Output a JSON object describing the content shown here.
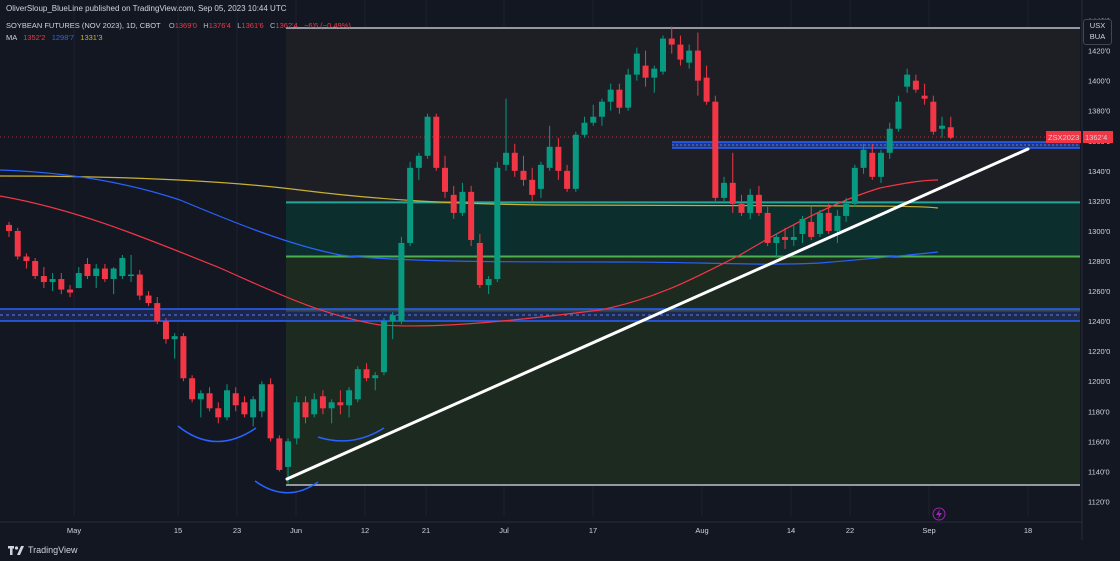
{
  "header": {
    "attribution": "OliverSloup_BlueLine published on TradingView.com, Sep 05, 2023 10:44 UTC"
  },
  "symbol": {
    "title": "SOYBEAN FUTURES (NOV 2023), 1D, CBOT",
    "o_label": "O",
    "o_value": "1369'0",
    "h_label": "H",
    "h_value": "1376'4",
    "l_label": "L",
    "l_value": "1361'6",
    "c_label": "C",
    "c_value": "1362'4",
    "change": "−6'6 (−0.49%)"
  },
  "ma": {
    "label": "MA",
    "v1": "1352'2",
    "v2": "1298'7",
    "v3": "1331'3",
    "colors": {
      "v1": "#f23645",
      "v2": "#2962ff",
      "v3": "#c9b033"
    }
  },
  "currency": {
    "line1": "USX",
    "line2": "BUA"
  },
  "price_tag": {
    "symbol": "ZSX2023",
    "price": "1362'4"
  },
  "footer": {
    "brand": "TradingView"
  },
  "colors": {
    "background": "#131722",
    "up": "#089981",
    "down": "#f23645",
    "white_trend": "#ffffff",
    "blue_zone": "#2962ff",
    "green_line": "#4caf50",
    "teal_line": "#26a69a",
    "grey_line": "#9598a1"
  },
  "chart_data": {
    "type": "candlestick",
    "y_ticks": [
      "1440'0",
      "1420'0",
      "1400'0",
      "1380'0",
      "1360'0",
      "1340'0",
      "1320'0",
      "1300'0",
      "1280'0",
      "1260'0",
      "1240'0",
      "1220'0",
      "1200'0",
      "1180'0",
      "1160'0",
      "1140'0",
      "1120'0"
    ],
    "x_ticks": [
      "May",
      "15",
      "23",
      "Jun",
      "12",
      "21",
      "Jul",
      "17",
      "Aug",
      "14",
      "22",
      "Sep",
      "18"
    ],
    "ylim": [
      1113,
      1451
    ],
    "levels": [
      {
        "name": "top-range",
        "value": 1435,
        "color": "#9598a1"
      },
      {
        "name": "bottom-range",
        "value": 1131,
        "color": "#9598a1"
      },
      {
        "name": "teal-support",
        "value": 1319,
        "color": "#26a69a"
      },
      {
        "name": "green-support",
        "value": 1283,
        "color": "#4caf50"
      },
      {
        "name": "light-green",
        "value": 1247,
        "color": "#8bc34a"
      }
    ],
    "candles": [
      {
        "o": 1304,
        "h": 1306,
        "l": 1296,
        "c": 1300
      },
      {
        "o": 1300,
        "h": 1302,
        "l": 1281,
        "c": 1283
      },
      {
        "o": 1283,
        "h": 1285,
        "l": 1275,
        "c": 1280
      },
      {
        "o": 1280,
        "h": 1282,
        "l": 1268,
        "c": 1270
      },
      {
        "o": 1270,
        "h": 1276,
        "l": 1262,
        "c": 1266
      },
      {
        "o": 1266,
        "h": 1272,
        "l": 1260,
        "c": 1268
      },
      {
        "o": 1268,
        "h": 1272,
        "l": 1258,
        "c": 1261
      },
      {
        "o": 1261,
        "h": 1264,
        "l": 1256,
        "c": 1259
      },
      {
        "o": 1262,
        "h": 1276,
        "l": 1262,
        "c": 1272
      },
      {
        "o": 1278,
        "h": 1282,
        "l": 1268,
        "c": 1270
      },
      {
        "o": 1270,
        "h": 1278,
        "l": 1262,
        "c": 1275
      },
      {
        "o": 1275,
        "h": 1278,
        "l": 1266,
        "c": 1268
      },
      {
        "o": 1268,
        "h": 1276,
        "l": 1258,
        "c": 1275
      },
      {
        "o": 1270,
        "h": 1284,
        "l": 1268,
        "c": 1282
      },
      {
        "o": 1270,
        "h": 1284,
        "l": 1266,
        "c": 1271
      },
      {
        "o": 1271,
        "h": 1274,
        "l": 1254,
        "c": 1257
      },
      {
        "o": 1257,
        "h": 1260,
        "l": 1250,
        "c": 1252
      },
      {
        "o": 1252,
        "h": 1256,
        "l": 1238,
        "c": 1240
      },
      {
        "o": 1240,
        "h": 1242,
        "l": 1225,
        "c": 1228
      },
      {
        "o": 1228,
        "h": 1232,
        "l": 1215,
        "c": 1230
      },
      {
        "o": 1230,
        "h": 1232,
        "l": 1200,
        "c": 1202
      },
      {
        "o": 1202,
        "h": 1204,
        "l": 1186,
        "c": 1188
      },
      {
        "o": 1188,
        "h": 1194,
        "l": 1176,
        "c": 1192
      },
      {
        "o": 1192,
        "h": 1196,
        "l": 1180,
        "c": 1182
      },
      {
        "o": 1182,
        "h": 1186,
        "l": 1172,
        "c": 1176
      },
      {
        "o": 1176,
        "h": 1198,
        "l": 1174,
        "c": 1194
      },
      {
        "o": 1192,
        "h": 1196,
        "l": 1180,
        "c": 1184
      },
      {
        "o": 1186,
        "h": 1190,
        "l": 1176,
        "c": 1178
      },
      {
        "o": 1176,
        "h": 1190,
        "l": 1170,
        "c": 1188
      },
      {
        "o": 1180,
        "h": 1200,
        "l": 1176,
        "c": 1198
      },
      {
        "o": 1198,
        "h": 1202,
        "l": 1160,
        "c": 1162
      },
      {
        "o": 1162,
        "h": 1164,
        "l": 1140,
        "c": 1141
      },
      {
        "o": 1143,
        "h": 1162,
        "l": 1132,
        "c": 1160
      },
      {
        "o": 1162,
        "h": 1190,
        "l": 1158,
        "c": 1186
      },
      {
        "o": 1186,
        "h": 1190,
        "l": 1172,
        "c": 1176
      },
      {
        "o": 1178,
        "h": 1192,
        "l": 1176,
        "c": 1188
      },
      {
        "o": 1190,
        "h": 1194,
        "l": 1178,
        "c": 1182
      },
      {
        "o": 1182,
        "h": 1188,
        "l": 1172,
        "c": 1186
      },
      {
        "o": 1186,
        "h": 1194,
        "l": 1178,
        "c": 1184
      },
      {
        "o": 1184,
        "h": 1196,
        "l": 1176,
        "c": 1194
      },
      {
        "o": 1188,
        "h": 1210,
        "l": 1186,
        "c": 1208
      },
      {
        "o": 1208,
        "h": 1212,
        "l": 1200,
        "c": 1202
      },
      {
        "o": 1202,
        "h": 1206,
        "l": 1194,
        "c": 1204
      },
      {
        "o": 1206,
        "h": 1242,
        "l": 1204,
        "c": 1240
      },
      {
        "o": 1240,
        "h": 1246,
        "l": 1228,
        "c": 1244
      },
      {
        "o": 1240,
        "h": 1296,
        "l": 1238,
        "c": 1292
      },
      {
        "o": 1292,
        "h": 1346,
        "l": 1290,
        "c": 1342
      },
      {
        "o": 1342,
        "h": 1352,
        "l": 1334,
        "c": 1350
      },
      {
        "o": 1350,
        "h": 1378,
        "l": 1348,
        "c": 1376
      },
      {
        "o": 1376,
        "h": 1378,
        "l": 1340,
        "c": 1342
      },
      {
        "o": 1342,
        "h": 1350,
        "l": 1322,
        "c": 1326
      },
      {
        "o": 1324,
        "h": 1330,
        "l": 1308,
        "c": 1312
      },
      {
        "o": 1312,
        "h": 1332,
        "l": 1310,
        "c": 1326
      },
      {
        "o": 1326,
        "h": 1330,
        "l": 1290,
        "c": 1294
      },
      {
        "o": 1292,
        "h": 1298,
        "l": 1262,
        "c": 1264
      },
      {
        "o": 1264,
        "h": 1270,
        "l": 1258,
        "c": 1268
      },
      {
        "o": 1268,
        "h": 1346,
        "l": 1266,
        "c": 1342
      },
      {
        "o": 1344,
        "h": 1388,
        "l": 1340,
        "c": 1352
      },
      {
        "o": 1352,
        "h": 1358,
        "l": 1336,
        "c": 1340
      },
      {
        "o": 1340,
        "h": 1350,
        "l": 1330,
        "c": 1334
      },
      {
        "o": 1334,
        "h": 1342,
        "l": 1320,
        "c": 1324
      },
      {
        "o": 1328,
        "h": 1346,
        "l": 1322,
        "c": 1344
      },
      {
        "o": 1342,
        "h": 1370,
        "l": 1340,
        "c": 1356
      },
      {
        "o": 1356,
        "h": 1362,
        "l": 1334,
        "c": 1340
      },
      {
        "o": 1340,
        "h": 1344,
        "l": 1326,
        "c": 1328
      },
      {
        "o": 1328,
        "h": 1366,
        "l": 1326,
        "c": 1364
      },
      {
        "o": 1364,
        "h": 1376,
        "l": 1362,
        "c": 1372
      },
      {
        "o": 1372,
        "h": 1384,
        "l": 1370,
        "c": 1376
      },
      {
        "o": 1376,
        "h": 1388,
        "l": 1370,
        "c": 1386
      },
      {
        "o": 1386,
        "h": 1398,
        "l": 1380,
        "c": 1394
      },
      {
        "o": 1394,
        "h": 1398,
        "l": 1378,
        "c": 1382
      },
      {
        "o": 1382,
        "h": 1408,
        "l": 1380,
        "c": 1404
      },
      {
        "o": 1404,
        "h": 1422,
        "l": 1400,
        "c": 1418
      },
      {
        "o": 1410,
        "h": 1420,
        "l": 1396,
        "c": 1402
      },
      {
        "o": 1402,
        "h": 1410,
        "l": 1392,
        "c": 1408
      },
      {
        "o": 1406,
        "h": 1430,
        "l": 1404,
        "c": 1428
      },
      {
        "o": 1428,
        "h": 1436,
        "l": 1418,
        "c": 1424
      },
      {
        "o": 1424,
        "h": 1430,
        "l": 1410,
        "c": 1414
      },
      {
        "o": 1412,
        "h": 1424,
        "l": 1408,
        "c": 1420
      },
      {
        "o": 1420,
        "h": 1432,
        "l": 1390,
        "c": 1400
      },
      {
        "o": 1402,
        "h": 1410,
        "l": 1384,
        "c": 1386
      },
      {
        "o": 1386,
        "h": 1390,
        "l": 1320,
        "c": 1322
      },
      {
        "o": 1322,
        "h": 1336,
        "l": 1318,
        "c": 1332
      },
      {
        "o": 1332,
        "h": 1352,
        "l": 1312,
        "c": 1318
      },
      {
        "o": 1318,
        "h": 1324,
        "l": 1310,
        "c": 1312
      },
      {
        "o": 1312,
        "h": 1328,
        "l": 1308,
        "c": 1324
      },
      {
        "o": 1324,
        "h": 1330,
        "l": 1310,
        "c": 1312
      },
      {
        "o": 1312,
        "h": 1316,
        "l": 1290,
        "c": 1292
      },
      {
        "o": 1292,
        "h": 1298,
        "l": 1282,
        "c": 1296
      },
      {
        "o": 1296,
        "h": 1302,
        "l": 1288,
        "c": 1294
      },
      {
        "o": 1294,
        "h": 1304,
        "l": 1290,
        "c": 1296
      },
      {
        "o": 1298,
        "h": 1310,
        "l": 1292,
        "c": 1308
      },
      {
        "o": 1306,
        "h": 1316,
        "l": 1294,
        "c": 1296
      },
      {
        "o": 1298,
        "h": 1314,
        "l": 1296,
        "c": 1312
      },
      {
        "o": 1312,
        "h": 1318,
        "l": 1298,
        "c": 1300
      },
      {
        "o": 1300,
        "h": 1314,
        "l": 1292,
        "c": 1310
      },
      {
        "o": 1310,
        "h": 1322,
        "l": 1306,
        "c": 1318
      },
      {
        "o": 1318,
        "h": 1344,
        "l": 1316,
        "c": 1342
      },
      {
        "o": 1342,
        "h": 1358,
        "l": 1338,
        "c": 1354
      },
      {
        "o": 1352,
        "h": 1358,
        "l": 1334,
        "c": 1336
      },
      {
        "o": 1336,
        "h": 1354,
        "l": 1332,
        "c": 1352
      },
      {
        "o": 1352,
        "h": 1372,
        "l": 1348,
        "c": 1368
      },
      {
        "o": 1368,
        "h": 1390,
        "l": 1366,
        "c": 1386
      },
      {
        "o": 1396,
        "h": 1408,
        "l": 1392,
        "c": 1404
      },
      {
        "o": 1400,
        "h": 1404,
        "l": 1392,
        "c": 1394
      },
      {
        "o": 1390,
        "h": 1398,
        "l": 1384,
        "c": 1388
      },
      {
        "o": 1386,
        "h": 1390,
        "l": 1364,
        "c": 1366
      },
      {
        "o": 1368,
        "h": 1376,
        "l": 1362,
        "c": 1370
      },
      {
        "o": 1369,
        "h": 1376,
        "l": 1361,
        "c": 1362
      }
    ],
    "last_price": 1362.5,
    "current_price_level": 1362.5
  }
}
